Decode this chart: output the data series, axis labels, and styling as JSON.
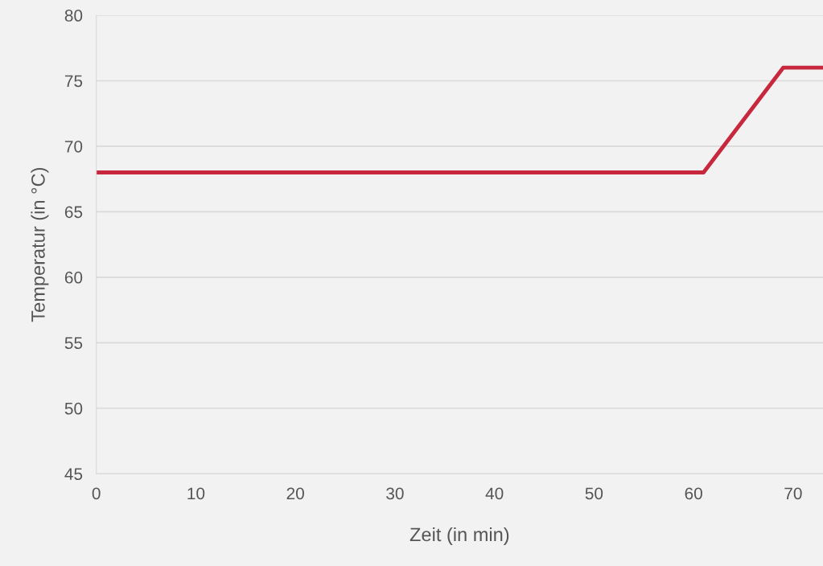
{
  "chart_data": {
    "type": "line",
    "xlabel": "Zeit (in min)",
    "ylabel": "Temperatur (in °C)",
    "x": [
      0,
      61,
      69,
      73
    ],
    "series": [
      {
        "color": "#c8283e",
        "values": [
          68,
          68,
          76,
          76
        ]
      }
    ],
    "xlim": [
      0,
      73
    ],
    "xticks": [
      0,
      10,
      20,
      30,
      40,
      50,
      60,
      70
    ],
    "ylim": [
      45,
      80
    ],
    "yticks": [
      45,
      50,
      55,
      60,
      65,
      70,
      75,
      80
    ],
    "grid": "y",
    "marker": "none",
    "line_style": "solid"
  }
}
